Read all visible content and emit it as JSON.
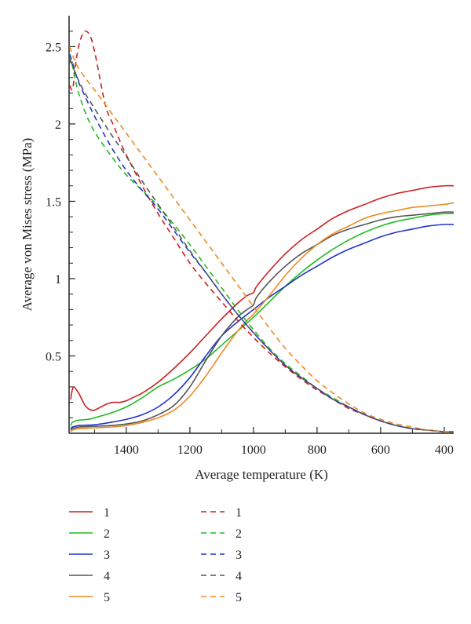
{
  "chart_data": {
    "type": "line",
    "xlabel": "Average temperature (K)",
    "ylabel": "Average von Mises stress (MPa)",
    "xlim": [
      1580,
      370
    ],
    "ylim": [
      0,
      2.7
    ],
    "x_reversed": true,
    "x_ticks": [
      1400,
      1200,
      1000,
      800,
      600,
      400
    ],
    "x_tick_labels": [
      "1400",
      "1200",
      "1000",
      "800",
      "600",
      "400"
    ],
    "y_ticks": [
      0.5,
      1,
      1.5,
      2,
      2.5
    ],
    "y_tick_labels": [
      "0.5",
      "1",
      "1.5",
      "2",
      "2.5"
    ],
    "grid": false,
    "legend_position": "below",
    "series": [
      {
        "name": "1",
        "color": "#cc2020",
        "dash": "solid",
        "x": [
          1575,
          1570,
          1565,
          1560,
          1550,
          1540,
          1530,
          1520,
          1510,
          1500,
          1480,
          1460,
          1440,
          1420,
          1400,
          1380,
          1350,
          1300,
          1250,
          1200,
          1150,
          1100,
          1050,
          1020,
          1000,
          990,
          950,
          900,
          850,
          800,
          750,
          700,
          650,
          600,
          550,
          500,
          450,
          400,
          370
        ],
        "y": [
          0.22,
          0.28,
          0.3,
          0.29,
          0.26,
          0.22,
          0.18,
          0.16,
          0.15,
          0.15,
          0.17,
          0.19,
          0.2,
          0.2,
          0.21,
          0.23,
          0.26,
          0.33,
          0.42,
          0.52,
          0.63,
          0.74,
          0.84,
          0.89,
          0.91,
          0.95,
          1.05,
          1.16,
          1.25,
          1.32,
          1.39,
          1.44,
          1.48,
          1.52,
          1.55,
          1.57,
          1.59,
          1.6,
          1.6
        ]
      },
      {
        "name": "2",
        "color": "#22bb22",
        "dash": "solid",
        "x": [
          1575,
          1570,
          1560,
          1550,
          1520,
          1500,
          1450,
          1400,
          1350,
          1300,
          1250,
          1200,
          1150,
          1100,
          1050,
          1000,
          950,
          900,
          850,
          800,
          750,
          700,
          650,
          600,
          550,
          500,
          450,
          400,
          370
        ],
        "y": [
          0.05,
          0.07,
          0.08,
          0.085,
          0.09,
          0.1,
          0.13,
          0.17,
          0.23,
          0.3,
          0.35,
          0.41,
          0.48,
          0.57,
          0.66,
          0.75,
          0.85,
          0.95,
          1.04,
          1.12,
          1.19,
          1.25,
          1.3,
          1.34,
          1.37,
          1.39,
          1.41,
          1.42,
          1.42
        ]
      },
      {
        "name": "3",
        "color": "#2233cc",
        "dash": "solid",
        "x": [
          1575,
          1570,
          1560,
          1550,
          1500,
          1450,
          1400,
          1350,
          1300,
          1250,
          1200,
          1150,
          1100,
          1050,
          1000,
          950,
          900,
          850,
          800,
          750,
          700,
          650,
          600,
          550,
          500,
          450,
          400,
          370
        ],
        "y": [
          0.03,
          0.04,
          0.045,
          0.05,
          0.055,
          0.07,
          0.09,
          0.12,
          0.17,
          0.25,
          0.36,
          0.5,
          0.63,
          0.72,
          0.8,
          0.88,
          0.95,
          1.02,
          1.08,
          1.14,
          1.19,
          1.23,
          1.27,
          1.3,
          1.32,
          1.34,
          1.35,
          1.35
        ]
      },
      {
        "name": "4",
        "color": "#555555",
        "dash": "solid",
        "x": [
          1575,
          1570,
          1560,
          1550,
          1500,
          1450,
          1400,
          1350,
          1300,
          1250,
          1200,
          1150,
          1100,
          1050,
          1020,
          1000,
          990,
          950,
          900,
          850,
          800,
          750,
          700,
          650,
          600,
          550,
          500,
          450,
          400,
          370
        ],
        "y": [
          0.02,
          0.03,
          0.035,
          0.04,
          0.045,
          0.05,
          0.06,
          0.08,
          0.12,
          0.18,
          0.3,
          0.47,
          0.63,
          0.75,
          0.8,
          0.83,
          0.88,
          0.98,
          1.08,
          1.16,
          1.22,
          1.28,
          1.32,
          1.35,
          1.38,
          1.4,
          1.41,
          1.42,
          1.43,
          1.43
        ]
      },
      {
        "name": "5",
        "color": "#ee8a22",
        "dash": "solid",
        "x": [
          1575,
          1570,
          1560,
          1550,
          1500,
          1450,
          1400,
          1350,
          1300,
          1250,
          1200,
          1150,
          1100,
          1050,
          1020,
          1000,
          950,
          900,
          850,
          800,
          750,
          700,
          650,
          600,
          550,
          500,
          450,
          400,
          370
        ],
        "y": [
          0.01,
          0.02,
          0.025,
          0.03,
          0.035,
          0.04,
          0.05,
          0.07,
          0.1,
          0.15,
          0.24,
          0.37,
          0.52,
          0.66,
          0.73,
          0.77,
          0.89,
          1.02,
          1.13,
          1.22,
          1.29,
          1.34,
          1.39,
          1.42,
          1.44,
          1.46,
          1.47,
          1.48,
          1.49
        ]
      },
      {
        "name": "1",
        "color": "#cc2020",
        "dash": "dashed",
        "x": [
          1578,
          1570,
          1565,
          1560,
          1550,
          1540,
          1530,
          1520,
          1510,
          1500,
          1490,
          1480,
          1470,
          1460,
          1440,
          1420,
          1400,
          1350,
          1300,
          1250,
          1200,
          1150,
          1100,
          1050,
          1000,
          950,
          900,
          850,
          800,
          750,
          700,
          650,
          600,
          550,
          500,
          450,
          400,
          370
        ],
        "y": [
          2.25,
          2.22,
          2.28,
          2.38,
          2.5,
          2.57,
          2.6,
          2.59,
          2.55,
          2.47,
          2.37,
          2.26,
          2.16,
          2.08,
          1.99,
          1.89,
          1.8,
          1.6,
          1.42,
          1.26,
          1.1,
          0.97,
          0.85,
          0.73,
          0.62,
          0.52,
          0.43,
          0.35,
          0.28,
          0.22,
          0.16,
          0.12,
          0.08,
          0.05,
          0.03,
          0.02,
          0.01,
          0.01
        ]
      },
      {
        "name": "2",
        "color": "#22bb22",
        "dash": "dashed",
        "x": [
          1578,
          1570,
          1560,
          1550,
          1530,
          1500,
          1450,
          1400,
          1350,
          1300,
          1250,
          1200,
          1150,
          1100,
          1050,
          1000,
          950,
          900,
          850,
          800,
          750,
          700,
          650,
          600,
          550,
          500,
          450,
          400,
          370
        ],
        "y": [
          2.45,
          2.38,
          2.28,
          2.2,
          2.08,
          1.95,
          1.8,
          1.67,
          1.57,
          1.47,
          1.35,
          1.22,
          1.08,
          0.94,
          0.8,
          0.67,
          0.55,
          0.45,
          0.37,
          0.29,
          0.23,
          0.17,
          0.12,
          0.08,
          0.05,
          0.03,
          0.02,
          0.01,
          0.01
        ]
      },
      {
        "name": "3",
        "color": "#2233cc",
        "dash": "dashed",
        "x": [
          1578,
          1570,
          1560,
          1550,
          1530,
          1500,
          1450,
          1400,
          1350,
          1300,
          1250,
          1200,
          1150,
          1100,
          1050,
          1000,
          950,
          900,
          850,
          800,
          750,
          700,
          650,
          600,
          550,
          500,
          450,
          400,
          370
        ],
        "y": [
          2.45,
          2.4,
          2.33,
          2.27,
          2.18,
          2.05,
          1.86,
          1.7,
          1.57,
          1.45,
          1.31,
          1.17,
          1.04,
          0.9,
          0.77,
          0.65,
          0.54,
          0.44,
          0.36,
          0.29,
          0.22,
          0.17,
          0.12,
          0.08,
          0.05,
          0.03,
          0.02,
          0.01,
          0.01
        ]
      },
      {
        "name": "4",
        "color": "#555555",
        "dash": "dashed",
        "x": [
          1578,
          1570,
          1560,
          1550,
          1530,
          1500,
          1450,
          1400,
          1350,
          1300,
          1250,
          1200,
          1150,
          1100,
          1050,
          1000,
          950,
          900,
          850,
          800,
          750,
          700,
          650,
          600,
          550,
          500,
          450,
          400,
          370
        ],
        "y": [
          2.42,
          2.38,
          2.33,
          2.28,
          2.2,
          2.1,
          1.94,
          1.79,
          1.63,
          1.48,
          1.33,
          1.18,
          1.04,
          0.9,
          0.77,
          0.65,
          0.54,
          0.44,
          0.36,
          0.29,
          0.22,
          0.17,
          0.12,
          0.08,
          0.05,
          0.03,
          0.02,
          0.01,
          0.01
        ]
      },
      {
        "name": "5",
        "color": "#ee8a22",
        "dash": "dashed",
        "x": [
          1578,
          1570,
          1560,
          1550,
          1530,
          1500,
          1450,
          1400,
          1350,
          1300,
          1250,
          1200,
          1150,
          1100,
          1050,
          1000,
          950,
          900,
          850,
          800,
          750,
          700,
          650,
          600,
          550,
          500,
          450,
          400,
          370
        ],
        "y": [
          2.5,
          2.45,
          2.4,
          2.36,
          2.3,
          2.22,
          2.08,
          1.94,
          1.8,
          1.66,
          1.52,
          1.38,
          1.24,
          1.1,
          0.96,
          0.82,
          0.68,
          0.55,
          0.44,
          0.34,
          0.26,
          0.19,
          0.13,
          0.09,
          0.06,
          0.04,
          0.02,
          0.01,
          0.01
        ]
      }
    ]
  }
}
